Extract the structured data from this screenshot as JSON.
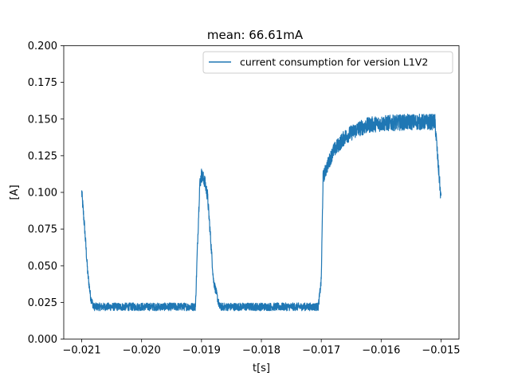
{
  "chart_data": {
    "type": "line",
    "title": "mean: 66.61mA",
    "xlabel": "t[s]",
    "ylabel": "[A]",
    "xlim": [
      -0.0213,
      -0.0147
    ],
    "ylim": [
      0.0,
      0.2
    ],
    "x_ticks": [
      -0.021,
      -0.02,
      -0.019,
      -0.018,
      -0.017,
      -0.016,
      -0.015
    ],
    "x_tick_labels": [
      "−0.021",
      "−0.020",
      "−0.019",
      "−0.018",
      "−0.017",
      "−0.016",
      "−0.015"
    ],
    "y_ticks": [
      0.0,
      0.025,
      0.05,
      0.075,
      0.1,
      0.125,
      0.15,
      0.175,
      0.2
    ],
    "y_tick_labels": [
      "0.000",
      "0.025",
      "0.050",
      "0.075",
      "0.100",
      "0.125",
      "0.150",
      "0.175",
      "0.200"
    ],
    "grid": false,
    "legend_position": "top-right",
    "series": [
      {
        "name": "current consumption for version L1V2",
        "color": "#1f77b4",
        "noise": 0.0055,
        "x": [
          -0.021,
          -0.02095,
          -0.0209,
          -0.02085,
          -0.0208,
          -0.0206,
          -0.02,
          -0.0195,
          -0.0191,
          -0.01907,
          -0.01903,
          -0.019,
          -0.01895,
          -0.0189,
          -0.01885,
          -0.0188,
          -0.0187,
          -0.0185,
          -0.018,
          -0.0175,
          -0.01705,
          -0.017,
          -0.01697,
          -0.0169,
          -0.0168,
          -0.0166,
          -0.0164,
          -0.0162,
          -0.016,
          -0.0155,
          -0.0151,
          -0.01505,
          -0.015
        ],
        "y": [
          0.1,
          0.075,
          0.045,
          0.028,
          0.022,
          0.022,
          0.022,
          0.022,
          0.022,
          0.06,
          0.105,
          0.112,
          0.108,
          0.098,
          0.07,
          0.04,
          0.022,
          0.022,
          0.022,
          0.022,
          0.022,
          0.04,
          0.11,
          0.118,
          0.128,
          0.138,
          0.143,
          0.146,
          0.147,
          0.148,
          0.148,
          0.12,
          0.095
        ]
      }
    ]
  }
}
